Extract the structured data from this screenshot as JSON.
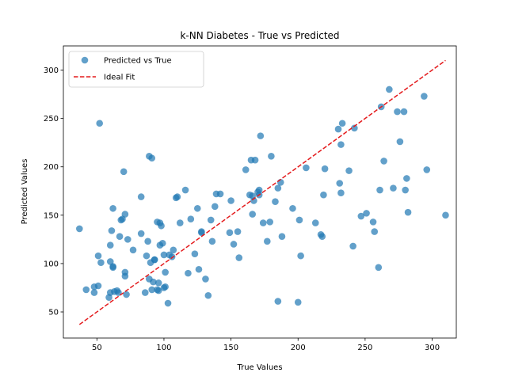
{
  "chart_data": {
    "type": "scatter",
    "title": "k-NN Diabetes - True vs Predicted",
    "xlabel": "True Values",
    "ylabel": "Predicted Values",
    "xlim": [
      25,
      318
    ],
    "ylim": [
      23,
      325
    ],
    "xticks": [
      50,
      100,
      150,
      200,
      250,
      300
    ],
    "yticks": [
      50,
      100,
      150,
      200,
      250,
      300
    ],
    "grid": false,
    "legend_position": "top-left",
    "series": [
      {
        "name": "Predicted vs True",
        "kind": "scatter",
        "color": "#1f77b4",
        "points": [
          [
            37,
            136
          ],
          [
            42,
            73
          ],
          [
            48,
            76
          ],
          [
            48,
            70
          ],
          [
            51,
            77
          ],
          [
            51,
            108
          ],
          [
            52,
            245
          ],
          [
            53,
            101
          ],
          [
            59,
            65
          ],
          [
            60,
            70
          ],
          [
            60,
            119
          ],
          [
            60,
            102
          ],
          [
            61,
            134
          ],
          [
            62,
            97
          ],
          [
            62,
            96
          ],
          [
            62,
            157
          ],
          [
            63,
            71
          ],
          [
            65,
            72
          ],
          [
            66,
            70
          ],
          [
            67,
            128
          ],
          [
            68,
            145
          ],
          [
            69,
            146
          ],
          [
            70,
            195
          ],
          [
            71,
            151
          ],
          [
            71,
            87
          ],
          [
            71,
            91
          ],
          [
            72,
            68
          ],
          [
            73,
            125
          ],
          [
            77,
            114
          ],
          [
            83,
            169
          ],
          [
            83,
            131
          ],
          [
            86,
            70
          ],
          [
            87,
            108
          ],
          [
            88,
            123
          ],
          [
            89,
            84
          ],
          [
            89,
            211
          ],
          [
            90,
            101
          ],
          [
            91,
            73
          ],
          [
            91,
            209
          ],
          [
            92,
            81
          ],
          [
            93,
            104
          ],
          [
            93,
            104
          ],
          [
            95,
            143
          ],
          [
            95,
            73
          ],
          [
            96,
            72
          ],
          [
            96,
            80
          ],
          [
            97,
            119
          ],
          [
            97,
            142
          ],
          [
            98,
            139
          ],
          [
            99,
            121
          ],
          [
            100,
            75
          ],
          [
            100,
            109
          ],
          [
            101,
            76
          ],
          [
            101,
            91
          ],
          [
            103,
            59
          ],
          [
            104,
            109
          ],
          [
            106,
            107
          ],
          [
            107,
            114
          ],
          [
            109,
            168
          ],
          [
            110,
            169
          ],
          [
            112,
            142
          ],
          [
            116,
            176
          ],
          [
            118,
            90
          ],
          [
            120,
            146
          ],
          [
            123,
            110
          ],
          [
            125,
            157
          ],
          [
            126,
            94
          ],
          [
            128,
            133
          ],
          [
            128,
            132
          ],
          [
            131,
            84
          ],
          [
            133,
            67
          ],
          [
            135,
            145
          ],
          [
            136,
            123
          ],
          [
            138,
            159
          ],
          [
            139,
            172
          ],
          [
            142,
            172
          ],
          [
            149,
            132
          ],
          [
            150,
            165
          ],
          [
            152,
            120
          ],
          [
            155,
            133
          ],
          [
            156,
            106
          ],
          [
            161,
            197
          ],
          [
            164,
            171
          ],
          [
            165,
            207
          ],
          [
            166,
            151
          ],
          [
            166,
            170
          ],
          [
            167,
            165
          ],
          [
            168,
            207
          ],
          [
            170,
            174
          ],
          [
            171,
            176
          ],
          [
            171,
            171
          ],
          [
            172,
            232
          ],
          [
            174,
            142
          ],
          [
            177,
            123
          ],
          [
            179,
            143
          ],
          [
            180,
            211
          ],
          [
            183,
            164
          ],
          [
            185,
            178
          ],
          [
            185,
            61
          ],
          [
            187,
            184
          ],
          [
            188,
            128
          ],
          [
            196,
            157
          ],
          [
            200,
            60
          ],
          [
            201,
            145
          ],
          [
            202,
            108
          ],
          [
            206,
            199
          ],
          [
            213,
            142
          ],
          [
            217,
            130
          ],
          [
            218,
            128
          ],
          [
            219,
            171
          ],
          [
            220,
            198
          ],
          [
            230,
            239
          ],
          [
            231,
            183
          ],
          [
            232,
            173
          ],
          [
            232,
            223
          ],
          [
            233,
            245
          ],
          [
            238,
            196
          ],
          [
            241,
            118
          ],
          [
            242,
            240
          ],
          [
            247,
            149
          ],
          [
            251,
            152
          ],
          [
            256,
            143
          ],
          [
            257,
            133
          ],
          [
            260,
            96
          ],
          [
            261,
            176
          ],
          [
            262,
            262
          ],
          [
            264,
            206
          ],
          [
            268,
            280
          ],
          [
            271,
            178
          ],
          [
            274,
            257
          ],
          [
            276,
            226
          ],
          [
            279,
            257
          ],
          [
            280,
            176
          ],
          [
            281,
            188
          ],
          [
            282,
            153
          ],
          [
            294,
            273
          ],
          [
            296,
            197
          ],
          [
            310,
            150
          ]
        ]
      },
      {
        "name": "Ideal Fit",
        "kind": "line",
        "style": "dashed",
        "color": "#e41a1c",
        "x": [
          37,
          310
        ],
        "y": [
          37,
          310
        ]
      }
    ]
  }
}
